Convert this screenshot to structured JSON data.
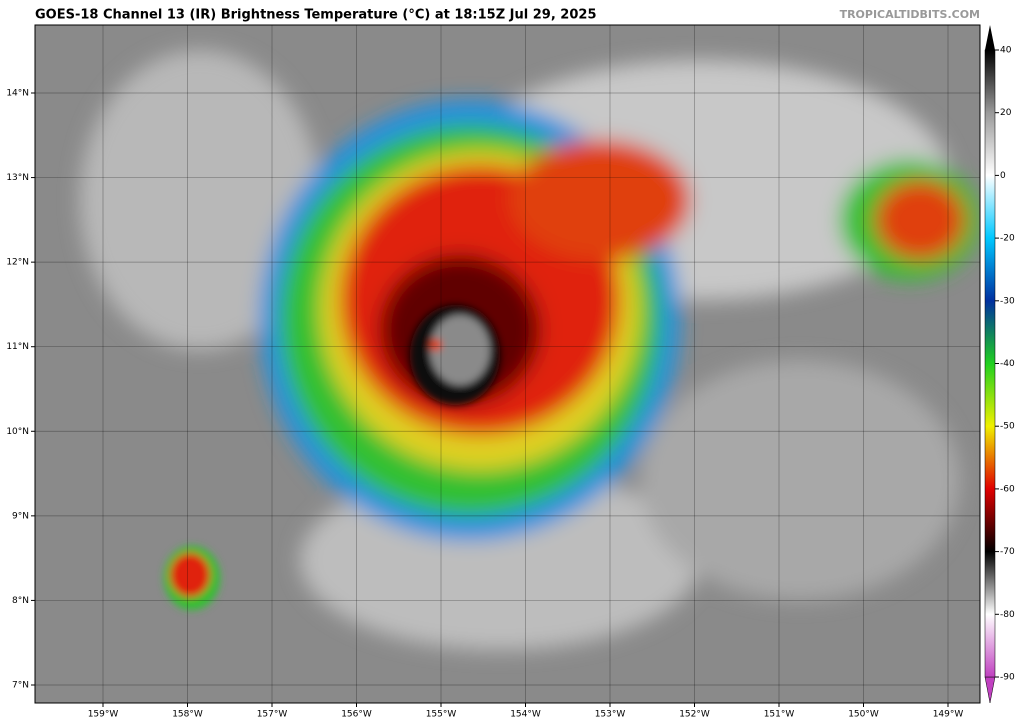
{
  "header": {
    "title": "GOES-18 Channel 13 (IR) Brightness Temperature (°C) at 18:15Z Jul 29, 2025",
    "credit": "TROPICALTIDBITS.COM"
  },
  "map": {
    "lon_ticks": [
      {
        "value": -159,
        "label": "159°W"
      },
      {
        "value": -158,
        "label": "158°W"
      },
      {
        "value": -157,
        "label": "157°W"
      },
      {
        "value": -156,
        "label": "156°W"
      },
      {
        "value": -155,
        "label": "155°W"
      },
      {
        "value": -154,
        "label": "154°W"
      },
      {
        "value": -153,
        "label": "153°W"
      },
      {
        "value": -152,
        "label": "152°W"
      },
      {
        "value": -151,
        "label": "151°W"
      },
      {
        "value": -150,
        "label": "150°W"
      },
      {
        "value": -149,
        "label": "149°W"
      }
    ],
    "lat_ticks": [
      {
        "value": 14,
        "label": "14°N"
      },
      {
        "value": 13,
        "label": "13°N"
      },
      {
        "value": 12,
        "label": "12°N"
      },
      {
        "value": 11,
        "label": "11°N"
      },
      {
        "value": 10,
        "label": "10°N"
      },
      {
        "value": 9,
        "label": "9°N"
      },
      {
        "value": 8,
        "label": "8°N"
      },
      {
        "value": 7,
        "label": "7°N"
      }
    ]
  },
  "colorbar": {
    "ticks": [
      40,
      20,
      0,
      -20,
      -30,
      -40,
      -50,
      -60,
      -70,
      -80,
      -90
    ],
    "colors": [
      "#000000",
      "#9a9a9a",
      "#ffffff",
      "#00c8ff",
      "#0030a0",
      "#20d020",
      "#f0f000",
      "#e00000",
      "#000000",
      "#ffffff",
      "#c040c0"
    ]
  }
}
